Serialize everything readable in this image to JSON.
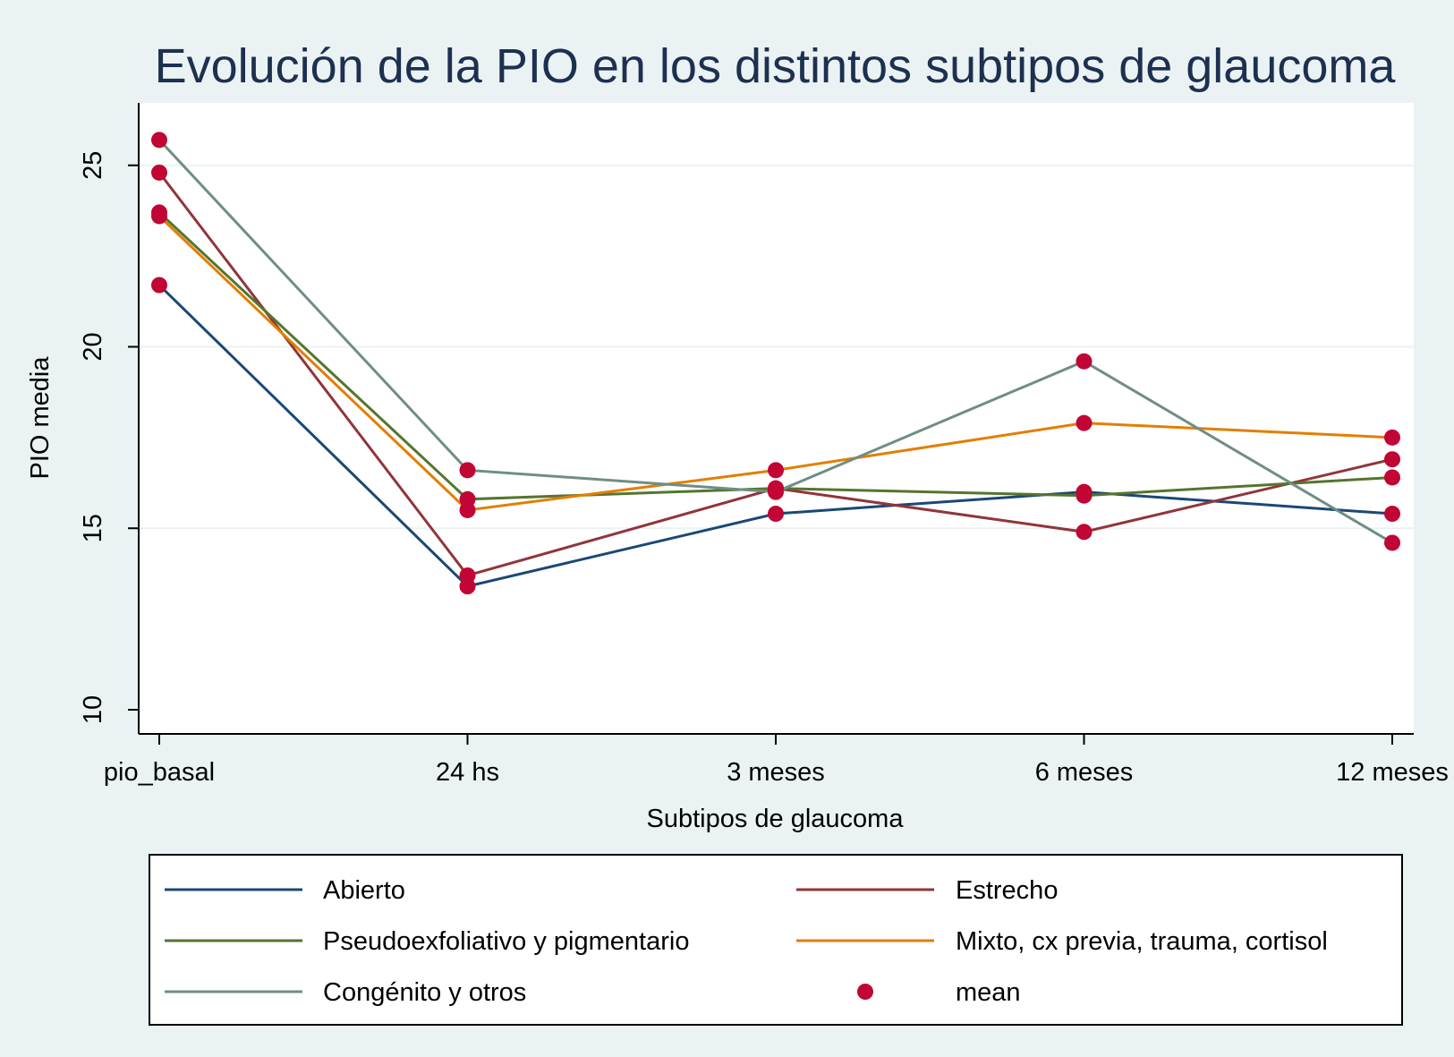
{
  "chart_data": {
    "type": "line",
    "title": "Evolución de la PIO en los distintos subtipos de glaucoma",
    "xlabel": "Subtipos de glaucoma",
    "ylabel": "PIO media",
    "categories": [
      "pio_basal",
      "24 hs",
      "3 meses",
      "6 meses",
      "12 meses"
    ],
    "ylim": [
      10,
      26.3
    ],
    "yticks": [
      10,
      15,
      20,
      25
    ],
    "grid": true,
    "legend_position": "bottom",
    "series": [
      {
        "name": "Abierto",
        "color": "#1a4876",
        "values": [
          21.7,
          13.4,
          15.4,
          16.0,
          15.4
        ]
      },
      {
        "name": "Estrecho",
        "color": "#90353b",
        "values": [
          24.8,
          13.7,
          16.1,
          14.9,
          16.9
        ]
      },
      {
        "name": "Pseudoexfoliativo y pigmentario",
        "color": "#55752f",
        "values": [
          23.7,
          15.8,
          16.1,
          15.9,
          16.4
        ]
      },
      {
        "name": "Mixto, cx previa, trauma, cortisol",
        "color": "#e37e00",
        "values": [
          23.6,
          15.5,
          16.6,
          17.9,
          17.5
        ]
      },
      {
        "name": "Congénito y otros",
        "color": "#6e8e84",
        "values": [
          25.7,
          16.6,
          16.0,
          19.6,
          14.6
        ]
      }
    ],
    "marker": {
      "name": "mean",
      "color": "#c10534"
    }
  }
}
